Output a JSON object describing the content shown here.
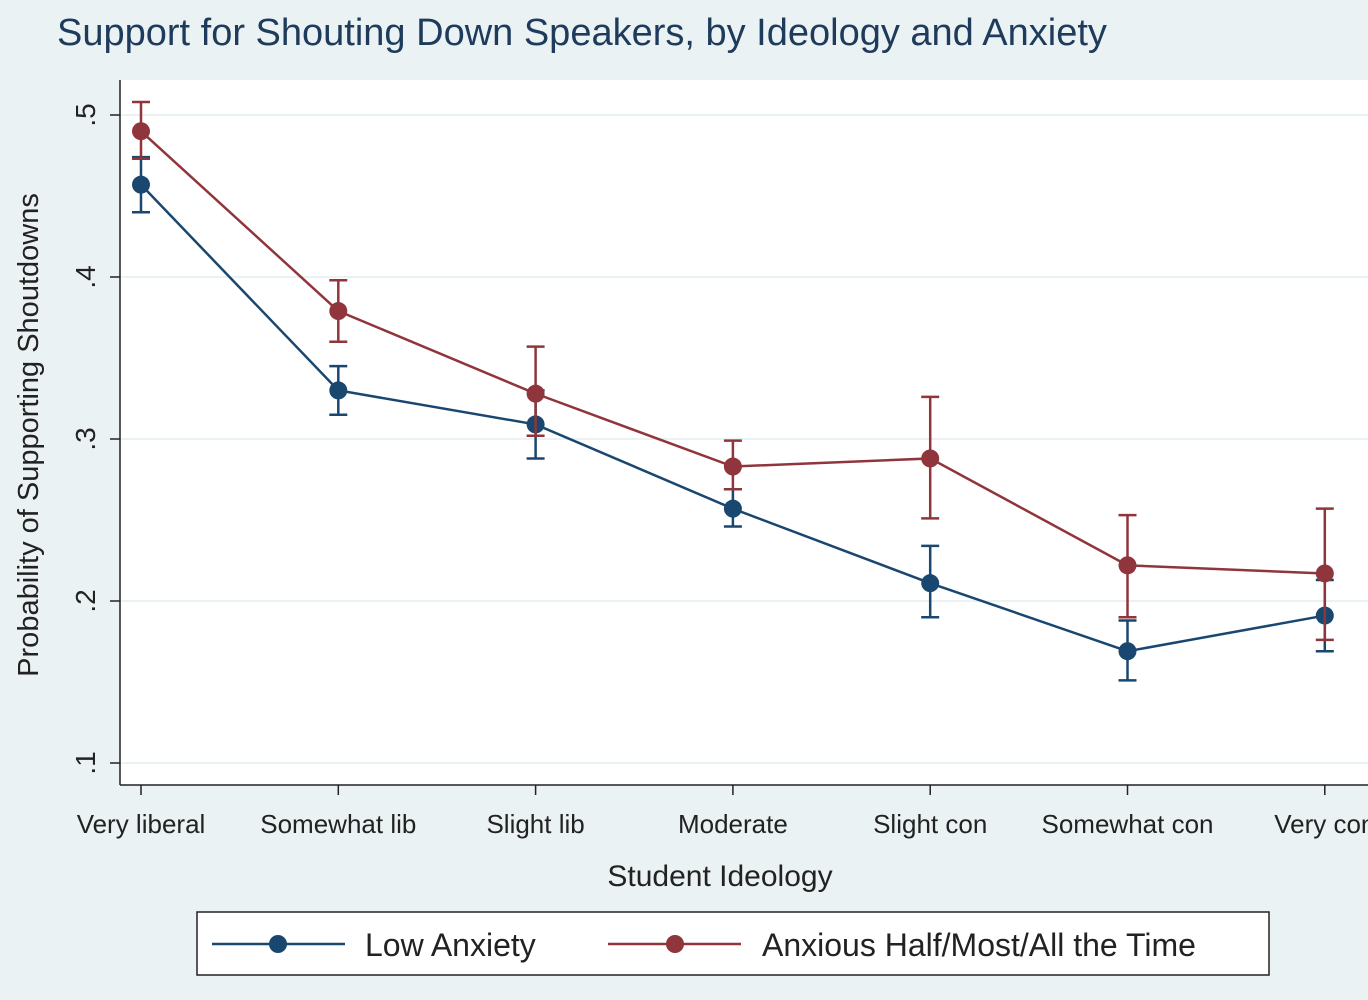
{
  "chart_data": {
    "type": "line",
    "title": "Support for Shouting Down Speakers, by Ideology and Anxiety",
    "xlabel": "Student Ideology",
    "ylabel": "Probability of Supporting Shoutdowns",
    "categories": [
      "Very liberal",
      "Somewhat lib",
      "Slight lib",
      "Moderate",
      "Slight con",
      "Somewhat con",
      "Very con"
    ],
    "yticks": [
      0.1,
      0.2,
      0.3,
      0.4,
      0.5
    ],
    "ytick_labels": [
      ".1",
      ".2",
      ".3",
      ".4",
      ".5"
    ],
    "ylim": [
      0.09,
      0.52
    ],
    "grid": true,
    "legend_position": "bottom",
    "series": [
      {
        "name": "Low Anxiety",
        "color": "#1a476f",
        "values": [
          0.457,
          0.33,
          0.309,
          0.257,
          0.211,
          0.169,
          0.191
        ],
        "ci_low": [
          0.44,
          0.315,
          0.288,
          0.246,
          0.19,
          0.151,
          0.169
        ],
        "ci_high": [
          0.474,
          0.345,
          0.33,
          0.269,
          0.234,
          0.188,
          0.213
        ]
      },
      {
        "name": "Anxious Half/Most/All the Time",
        "color": "#90353b",
        "values": [
          0.49,
          0.379,
          0.328,
          0.283,
          0.288,
          0.222,
          0.217
        ],
        "ci_low": [
          0.473,
          0.36,
          0.302,
          0.269,
          0.251,
          0.19,
          0.176
        ],
        "ci_high": [
          0.508,
          0.398,
          0.357,
          0.299,
          0.326,
          0.253,
          0.257
        ]
      }
    ]
  }
}
